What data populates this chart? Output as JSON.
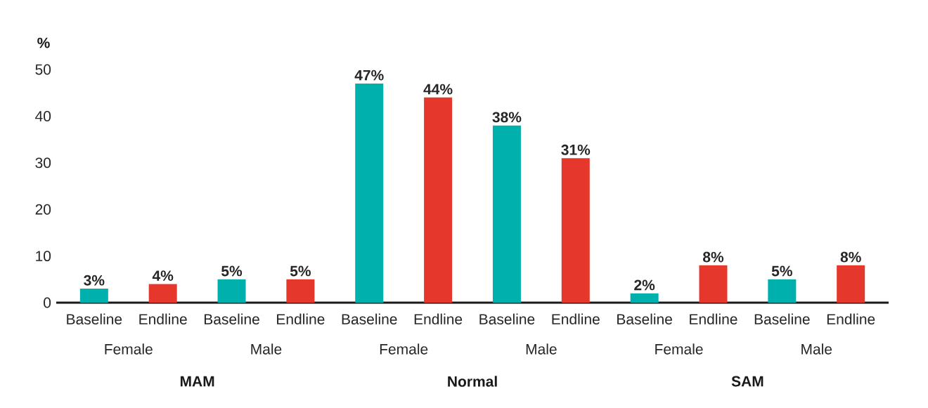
{
  "chart_data": {
    "type": "bar",
    "ylabel": "%",
    "categories": [
      "Baseline",
      "Endline",
      "Baseline",
      "Endline",
      "Baseline",
      "Endline",
      "Baseline",
      "Endline",
      "Baseline",
      "Endline",
      "Baseline",
      "Endline"
    ],
    "values": [
      3,
      4,
      5,
      5,
      47,
      44,
      38,
      31,
      2,
      8,
      5,
      8
    ],
    "colors": [
      "#00b0ad",
      "#e5372c",
      "#00b0ad",
      "#e5372c",
      "#00b0ad",
      "#e5372c",
      "#00b0ad",
      "#e5372c",
      "#00b0ad",
      "#e5372c",
      "#00b0ad",
      "#e5372c"
    ],
    "value_labels": [
      "3%",
      "4%",
      "5%",
      "5%",
      "47%",
      "44%",
      "38%",
      "31%",
      "2%",
      "8%",
      "5%",
      "8%"
    ],
    "annotations": [
      "Female",
      "Male",
      "Female",
      "Male",
      "Female",
      "Male",
      "MAM",
      "Normal",
      "SAM"
    ],
    "ylim": [
      0,
      50
    ],
    "yticks": [
      0,
      10,
      20,
      30,
      40,
      50
    ],
    "grid": false
  }
}
